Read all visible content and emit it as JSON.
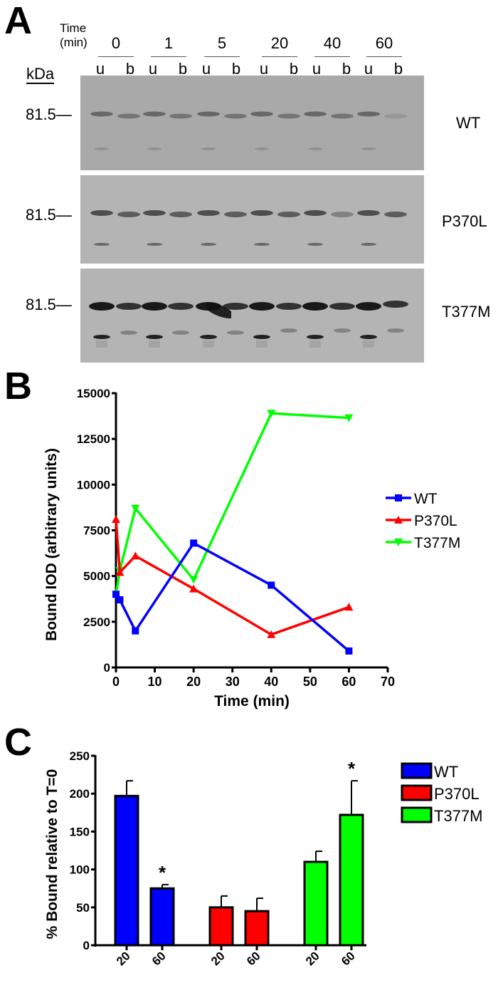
{
  "panel_a": {
    "letter": "A",
    "time_label_line1": "Time",
    "time_label_line2": "(min)",
    "kda_label": "kDa",
    "timepoints": [
      "0",
      "1",
      "5",
      "20",
      "40",
      "60"
    ],
    "lane_labels": [
      "u",
      "b"
    ],
    "blots": [
      {
        "name": "WT",
        "marker": "81.5—"
      },
      {
        "name": "P370L",
        "marker": "81.5—"
      },
      {
        "name": "T377M",
        "marker": "81.5—"
      }
    ]
  },
  "panel_b": {
    "letter": "B"
  },
  "panel_c": {
    "letter": "C"
  },
  "colors": {
    "WT": "#0000ff",
    "P370L": "#ff0000",
    "T377M": "#00ff00",
    "blot_bg": "#a9a9a9"
  },
  "chart_data": [
    {
      "panel": "B",
      "type": "line",
      "title": "",
      "xlabel": "Time (min)",
      "ylabel": "Bound IOD (arbitrary units)",
      "xlim": [
        0,
        70
      ],
      "ylim": [
        0,
        15000
      ],
      "xticks": [
        0,
        10,
        20,
        30,
        40,
        50,
        60,
        70
      ],
      "yticks": [
        0,
        2500,
        5000,
        7500,
        10000,
        12500,
        15000
      ],
      "grid": false,
      "legend_position": "right",
      "x": [
        0,
        1,
        5,
        20,
        40,
        60
      ],
      "series": [
        {
          "name": "WT",
          "marker": "square",
          "color": "#0000ff",
          "values": [
            4000,
            3700,
            2000,
            6800,
            4500,
            900
          ]
        },
        {
          "name": "P370L",
          "marker": "triangle-up",
          "color": "#ff0000",
          "values": [
            8100,
            5200,
            6100,
            4300,
            1800,
            3300
          ]
        },
        {
          "name": "T377M",
          "marker": "triangle-down",
          "color": "#00ff00",
          "values": [
            4000,
            5300,
            8700,
            4800,
            13900,
            13650
          ]
        }
      ]
    },
    {
      "panel": "C",
      "type": "bar",
      "title": "",
      "xlabel": "",
      "ylabel": "% Bound relative to T=0",
      "ylim": [
        0,
        250
      ],
      "yticks": [
        0,
        50,
        100,
        150,
        200,
        250
      ],
      "grid": false,
      "legend_position": "top-right",
      "categories": [
        "20",
        "60",
        "20",
        "60",
        "20",
        "60"
      ],
      "series": [
        {
          "name": "WT",
          "color": "#0000ff",
          "categories": [
            "20",
            "60"
          ],
          "values": [
            197,
            75
          ],
          "errors": [
            20,
            5
          ],
          "significance": [
            "",
            "*"
          ]
        },
        {
          "name": "P370L",
          "color": "#ff0000",
          "categories": [
            "20",
            "60"
          ],
          "values": [
            50,
            45
          ],
          "errors": [
            15,
            17
          ],
          "significance": [
            "",
            ""
          ]
        },
        {
          "name": "T377M",
          "color": "#00ff00",
          "categories": [
            "20",
            "60"
          ],
          "values": [
            110,
            172
          ],
          "errors": [
            14,
            45
          ],
          "significance": [
            "",
            "*"
          ]
        }
      ]
    }
  ]
}
